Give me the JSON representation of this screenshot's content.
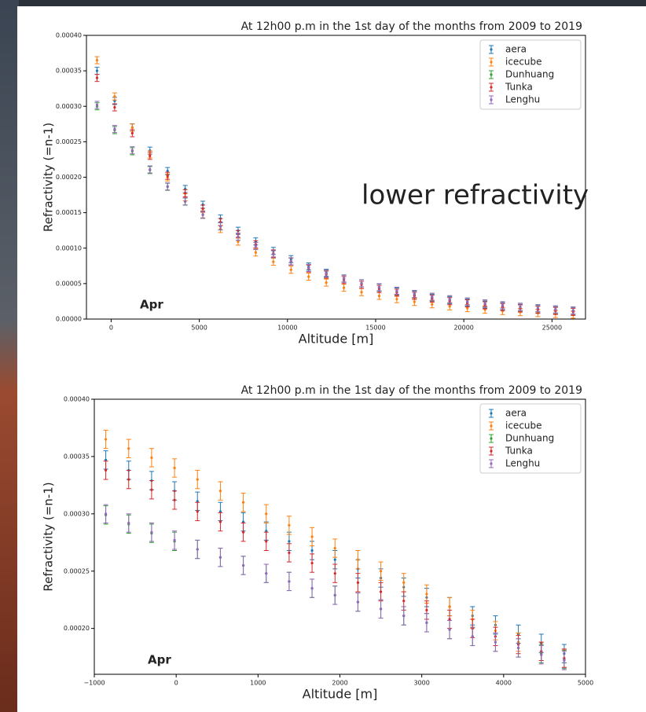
{
  "chart_data": [
    {
      "type": "errorbar",
      "title": "At 12h00 p.m in the 1st day of the months from 2009 to 2019",
      "xlabel": "Altitude [m]",
      "ylabel": "Refractivity (=n-1)",
      "annotation": "Apr",
      "callout": "lower refractivity",
      "legend": "upper right",
      "xlim": [
        -1400,
        26900
      ],
      "ylim": [
        0,
        0.0004
      ],
      "xticks": [
        0,
        5000,
        10000,
        15000,
        20000,
        25000
      ],
      "yticks": [
        {
          "value": 0,
          "label": "0.00000"
        },
        {
          "value": 5e-05,
          "label": "0.00005"
        },
        {
          "value": 0.0001,
          "label": "0.00010"
        },
        {
          "value": 0.00015,
          "label": "0.00015"
        },
        {
          "value": 0.0002,
          "label": "0.00020"
        },
        {
          "value": 0.00025,
          "label": "0.00025"
        },
        {
          "value": 0.0003,
          "label": "0.00030"
        },
        {
          "value": 0.00035,
          "label": "0.00035"
        },
        {
          "value": 0.0004,
          "label": "0.00040"
        }
      ],
      "x": [
        -800,
        200,
        1200,
        2200,
        3200,
        4200,
        5200,
        6200,
        7200,
        8200,
        9200,
        10200,
        11200,
        12200,
        13200,
        14200,
        15200,
        16200,
        17200,
        18200,
        19200,
        20200,
        21200,
        22200,
        23200,
        24200,
        25200,
        26200
      ],
      "series": [
        {
          "name": "aera",
          "color": "#1f77b4",
          "error": 5e-06,
          "values": [
            0.00035,
            0.0003076,
            0.0002703,
            0.0002375,
            0.0002087,
            0.0001834,
            0.0001612,
            0.0001417,
            0.0001245,
            0.0001094,
            9.61e-05,
            8.45e-05,
            7.42e-05,
            6.52e-05,
            5.73e-05,
            5.04e-05,
            4.43e-05,
            3.89e-05,
            3.42e-05,
            3e-05,
            2.64e-05,
            2.32e-05,
            2.04e-05,
            1.79e-05,
            1.57e-05,
            1.38e-05,
            1.22e-05,
            1.07e-05
          ]
        },
        {
          "name": "icecube",
          "color": "#ff7f0e",
          "error": 5e-06,
          "values": [
            0.000365,
            0.0003139,
            0.00027,
            0.0002322,
            0.0001997,
            0.0001717,
            0.0001477,
            0.000127,
            0.0001092,
            9.39e-05,
            8.08e-05,
            6.95e-05,
            5.97e-05,
            5.14e-05,
            4.42e-05,
            3.8e-05,
            3.27e-05,
            2.81e-05,
            2.42e-05,
            2.08e-05,
            1.79e-05,
            1.54e-05,
            1.32e-05,
            1.14e-05,
            9.8e-06,
            8.4e-06,
            7.2e-06,
            6.2e-06
          ]
        },
        {
          "name": "Dunhuang",
          "color": "#2ca02c",
          "error": 5e-06,
          "values": [
            0.0003,
            0.0002664,
            0.0002366,
            0.0002101,
            0.0001865,
            0.0001656,
            0.0001471,
            0.0001306,
            0.000116,
            0.000103,
            9.15e-05,
            8.12e-05,
            7.21e-05,
            6.4e-05,
            5.69e-05,
            5.05e-05,
            4.48e-05,
            3.98e-05,
            3.54e-05,
            3.14e-05,
            2.79e-05,
            2.48e-05,
            2.2e-05,
            1.95e-05,
            1.73e-05,
            1.54e-05,
            1.37e-05,
            1.21e-05
          ]
        },
        {
          "name": "Tunka",
          "color": "#d62728",
          "error": 5e-06,
          "values": [
            0.00034,
            0.0002985,
            0.0002621,
            0.0002301,
            0.000202,
            0.0001774,
            0.0001557,
            0.0001367,
            0.00012,
            0.0001054,
            9.25e-05,
            8.12e-05,
            7.13e-05,
            6.26e-05,
            5.5e-05,
            4.83e-05,
            4.24e-05,
            3.72e-05,
            3.27e-05,
            2.87e-05,
            2.52e-05,
            2.21e-05,
            1.94e-05,
            1.7e-05,
            1.5e-05,
            1.31e-05,
            1.15e-05,
            1.01e-05
          ]
        },
        {
          "name": "Lenghu",
          "color": "#9467bd",
          "error": 5e-06,
          "values": [
            0.000302,
            0.000268,
            0.000238,
            0.000211,
            0.000187,
            0.000166,
            0.000147,
            0.000131,
            0.000116,
            0.000103,
            9.16e-05,
            8.13e-05,
            7.22e-05,
            6.41e-05,
            5.69e-05,
            5.05e-05,
            4.49e-05,
            3.99e-05,
            3.54e-05,
            3.14e-05,
            2.79e-05,
            2.48e-05,
            2.2e-05,
            1.95e-05,
            1.73e-05,
            1.54e-05,
            1.37e-05,
            1.21e-05
          ]
        }
      ]
    },
    {
      "type": "errorbar",
      "title": "At 12h00 p.m in the 1st day of the months from 2009 to 2019",
      "xlabel": "Altitude [m]",
      "ylabel": "Refractivity (=n-1)",
      "annotation": "Apr",
      "legend": "upper right",
      "xlim": [
        -1000,
        5000
      ],
      "ylim": [
        0.00016,
        0.0004
      ],
      "xticks": [
        {
          "value": -1000,
          "label": "−1000"
        },
        0,
        1000,
        2000,
        3000,
        4000,
        5000
      ],
      "yticks": [
        {
          "value": 0.0002,
          "label": "0.00020"
        },
        {
          "value": 0.00025,
          "label": "0.00025"
        },
        {
          "value": 0.0003,
          "label": "0.00030"
        },
        {
          "value": 0.00035,
          "label": "0.00035"
        },
        {
          "value": 0.0004,
          "label": "0.00040"
        }
      ],
      "x": [
        -860,
        -580,
        -300,
        -20,
        260,
        540,
        820,
        1100,
        1380,
        1660,
        1940,
        2220,
        2500,
        2780,
        3060,
        3340,
        3620,
        3900,
        4180,
        4460,
        4740
      ],
      "series": [
        {
          "name": "aera",
          "color": "#1f77b4",
          "error": 8e-06,
          "values": [
            0.000347,
            0.000338,
            0.000329,
            0.00032,
            0.000311,
            0.000302,
            0.000293,
            0.000285,
            0.000276,
            0.000268,
            0.00026,
            0.000252,
            0.000244,
            0.000236,
            0.000227,
            0.000219,
            0.000211,
            0.000203,
            0.000195,
            0.000187,
            0.000178
          ]
        },
        {
          "name": "icecube",
          "color": "#ff7f0e",
          "error": 8e-06,
          "values": [
            0.000365,
            0.000357,
            0.000349,
            0.00034,
            0.00033,
            0.00032,
            0.00031,
            0.0003,
            0.00029,
            0.00028,
            0.00027,
            0.00026,
            0.00025,
            0.00024,
            0.00023,
            0.000219,
            0.000208,
            0.000198,
            0.000188,
            0.00018,
            0.000174
          ]
        },
        {
          "name": "Dunhuang",
          "color": "#2ca02c",
          "error": 8e-06,
          "values": [
            0.000299,
            0.000291,
            0.000283,
            0.000276,
            0.000269,
            0.000262,
            0.000255,
            0.000248,
            0.000241,
            0.000235,
            0.000229,
            0.000223,
            0.000217,
            0.000211,
            0.000205,
            0.000199,
            0.000193,
            0.000188,
            0.000183,
            0.000178,
            0.000173
          ]
        },
        {
          "name": "Tunka",
          "color": "#d62728",
          "error": 8e-06,
          "values": [
            0.000338,
            0.00033,
            0.000321,
            0.000312,
            0.000302,
            0.000293,
            0.000284,
            0.000276,
            0.000266,
            0.000257,
            0.000248,
            0.00024,
            0.000232,
            0.000224,
            0.000216,
            0.000208,
            0.0002,
            0.000193,
            0.000186,
            0.00018,
            0.000174
          ]
        },
        {
          "name": "Lenghu",
          "color": "#9467bd",
          "error": 8e-06,
          "values": [
            0.0003,
            0.000292,
            0.000284,
            0.000277,
            0.000269,
            0.000262,
            0.000255,
            0.000248,
            0.000241,
            0.000235,
            0.000229,
            0.000223,
            0.000217,
            0.000211,
            0.000205,
            0.000199,
            0.000193,
            0.000188,
            0.000183,
            0.000177,
            0.000172
          ]
        }
      ]
    }
  ]
}
